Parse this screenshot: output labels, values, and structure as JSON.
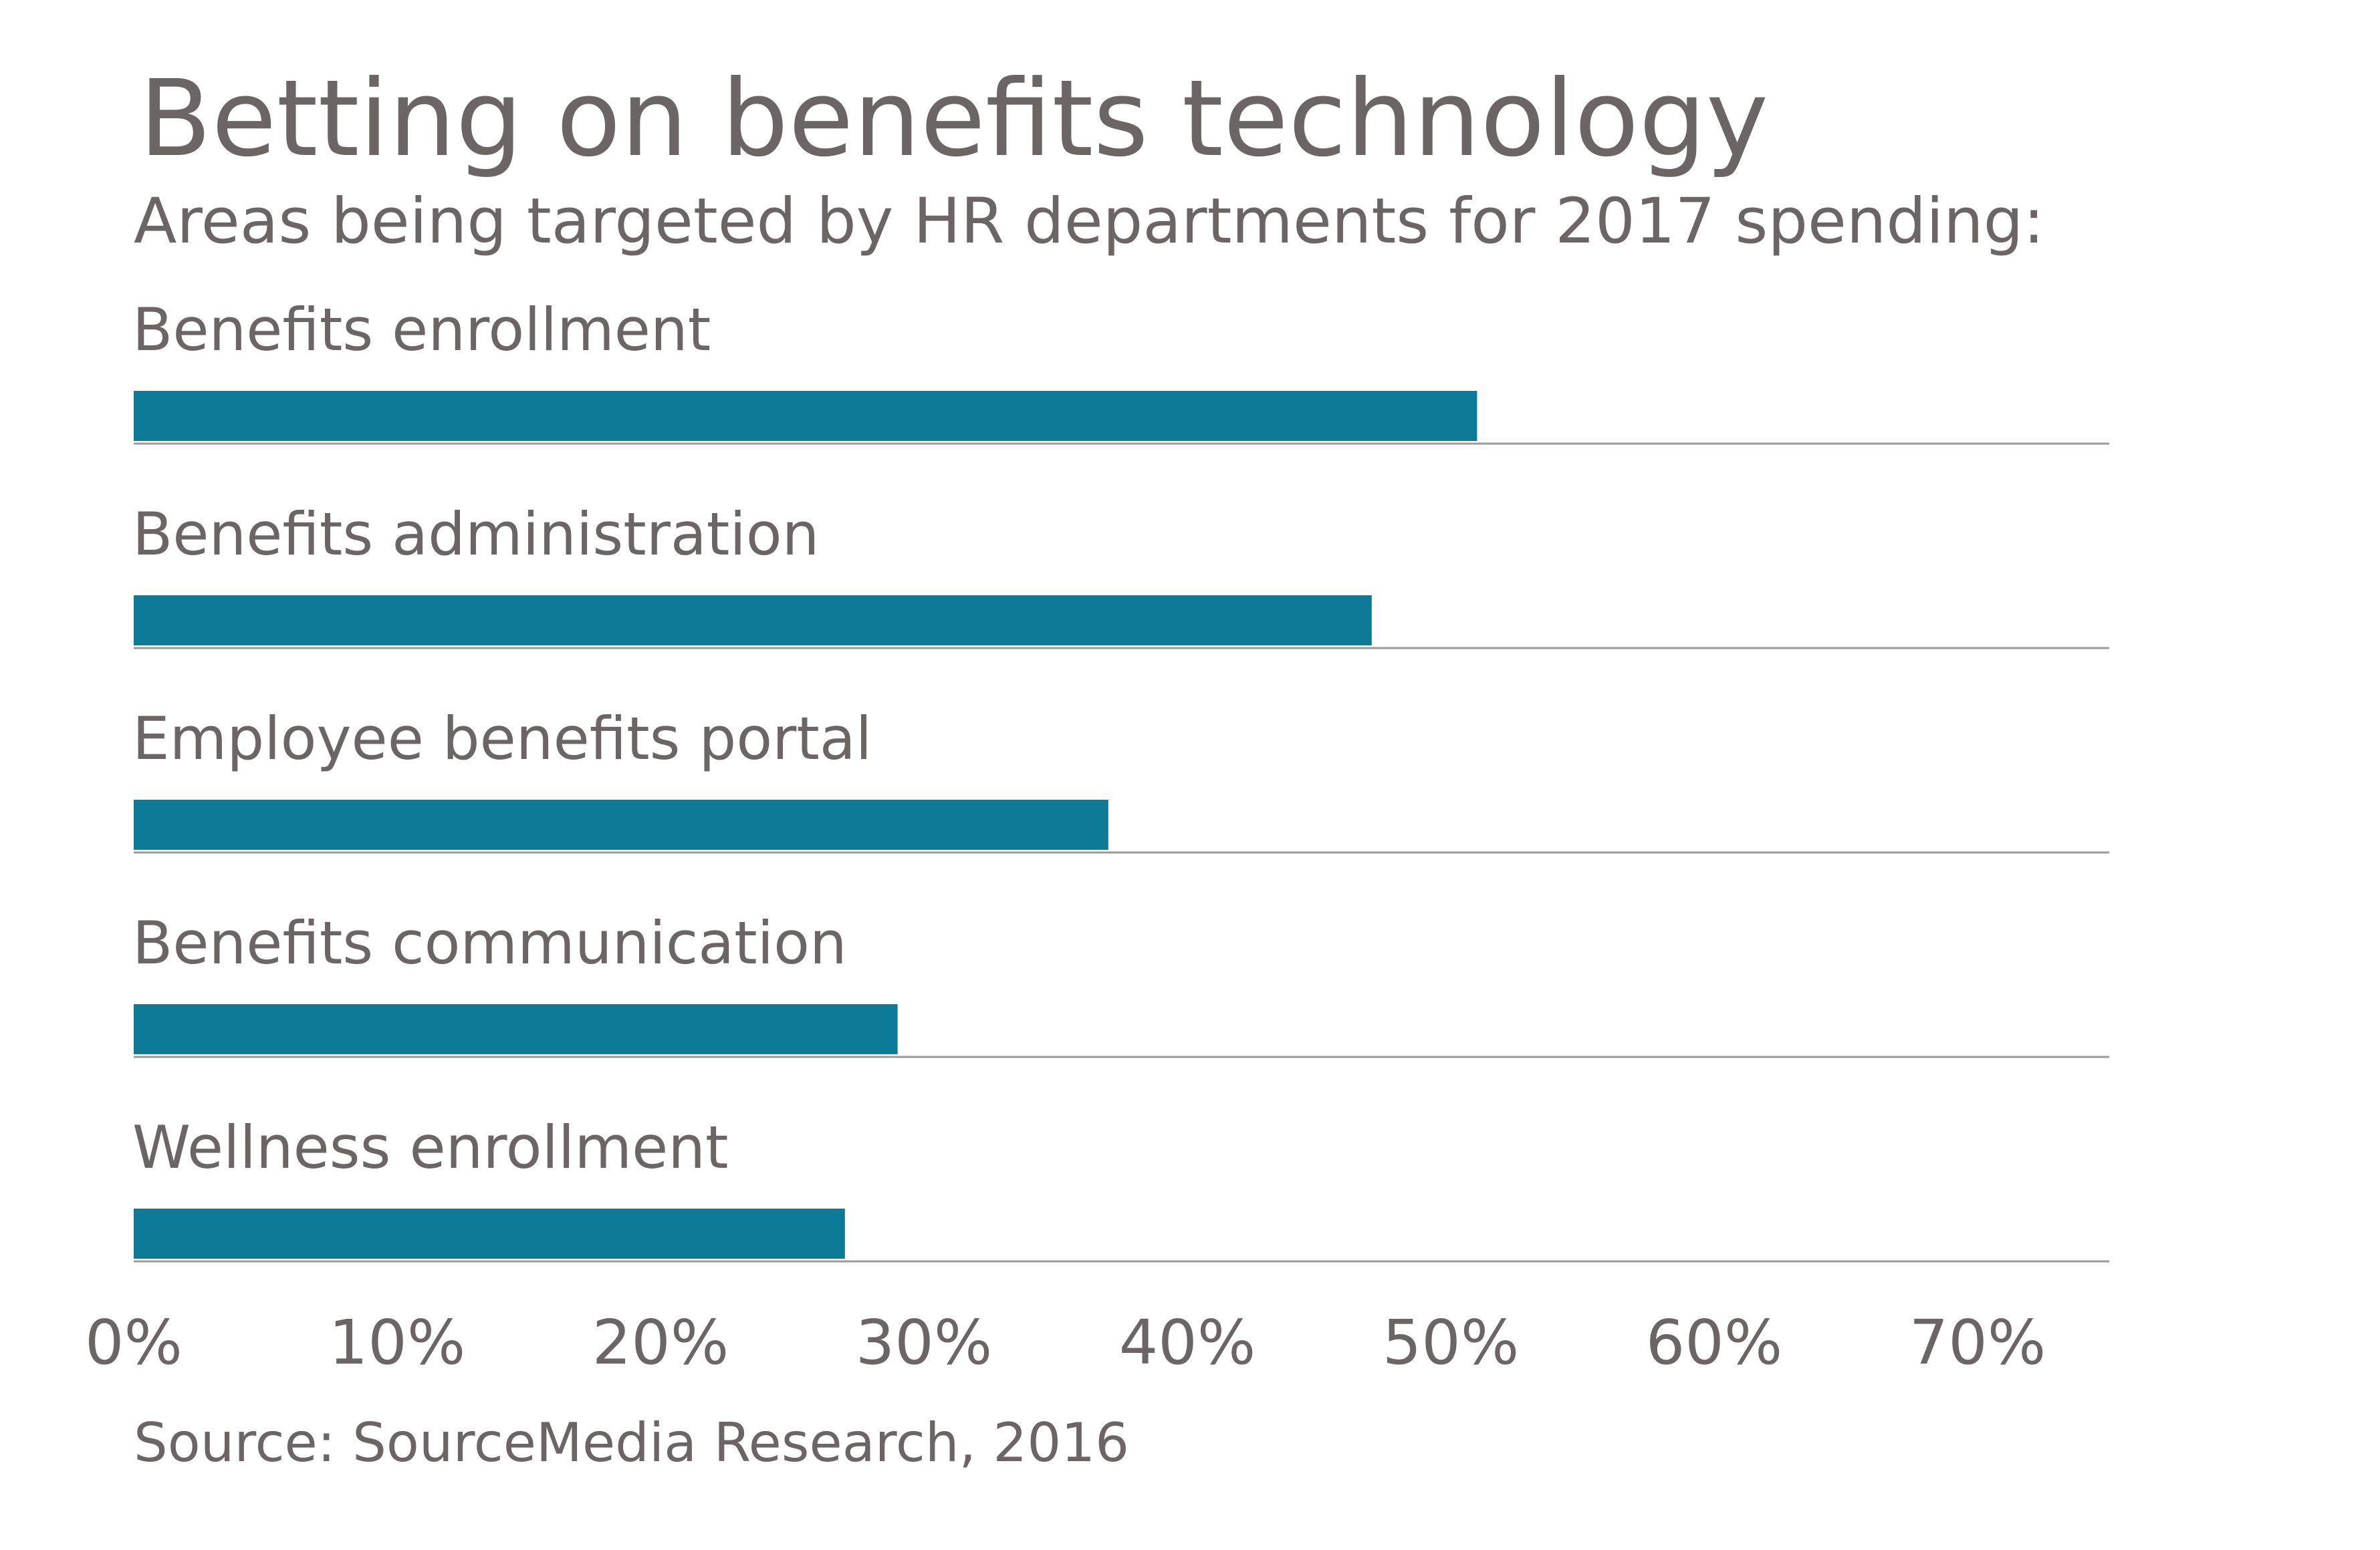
{
  "chart_data": {
    "type": "bar",
    "orientation": "horizontal",
    "title": "Betting on benefits technology",
    "subtitle": "Areas being targeted by HR departments for 2017 spending:",
    "categories": [
      "Benefits enrollment",
      "Benefits administration",
      "Employee benefits portal",
      "Benefits communication",
      "Wellness enrollment"
    ],
    "values": [
      51,
      47,
      37,
      29,
      27
    ],
    "unit": "%",
    "xlabel": "",
    "ylabel": "",
    "xlim": [
      0,
      75
    ],
    "x_ticks": [
      0,
      10,
      20,
      30,
      40,
      50,
      60,
      70
    ],
    "x_tick_labels": [
      "0%",
      "10%",
      "20%",
      "30%",
      "40%",
      "50%",
      "60%",
      "70%"
    ],
    "grid": false,
    "legend": "none",
    "source": "Source: SourceMedia Research, 2016",
    "colors": {
      "bar": "#0d7a97",
      "text": "#6b6665",
      "baseline": "#9b9b9b"
    }
  }
}
